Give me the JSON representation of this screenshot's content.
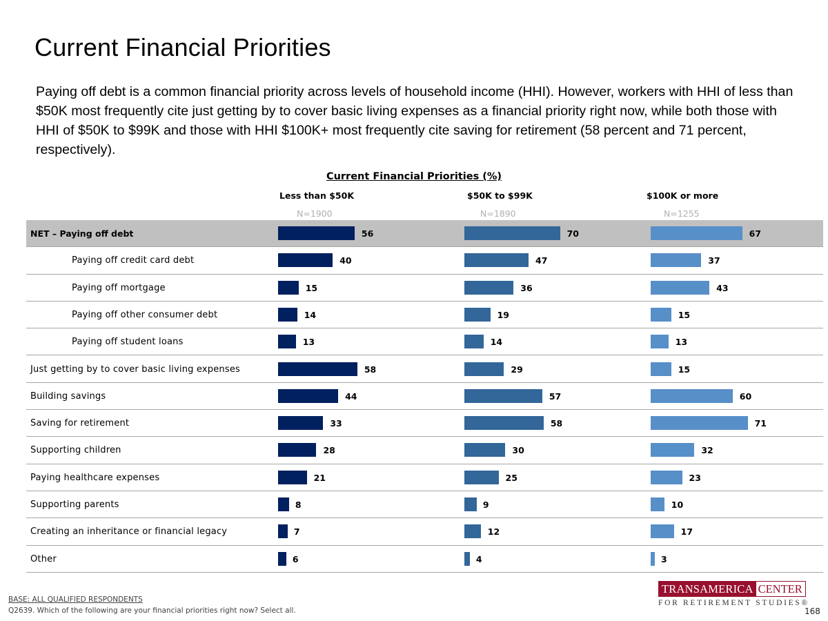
{
  "page": {
    "title": "Current Financial Priorities",
    "summary": "Paying off debt is a common financial priority across levels of household income (HHI). However, workers with HHI of less than $50K most frequently cite just getting by to cover basic living expenses as a financial priority right now, while both those with HHI of $50K to $99K and those with HHI $100K+ most frequently cite saving for retirement (58 percent and 71 percent, respectively).",
    "base_note": "BASE:  ALL QUALIFIED RESPONDENTS",
    "question_note": "Q2639. Which of the following are your financial priorities right now? Select all.",
    "logo": {
      "top_left": "TRANSAMERICA",
      "top_right": "CENTER",
      "bottom": "FOR RETIREMENT STUDIES®"
    },
    "page_number": "168"
  },
  "chart_data": {
    "type": "bar",
    "orientation": "horizontal",
    "title": "Current Financial Priorities (%)",
    "xlabel": "",
    "ylabel": "",
    "xlim": [
      0,
      100
    ],
    "grid": false,
    "legend": "none",
    "categories": [
      "NET – Paying off debt",
      "Paying off credit card debt",
      "Paying off mortgage",
      "Paying off other consumer debt",
      "Paying off student loans",
      "Just getting by to cover basic living expenses",
      "Building savings",
      "Saving for retirement",
      "Supporting children",
      "Paying healthcare expenses",
      "Supporting parents",
      "Creating an inheritance or financial legacy",
      "Other"
    ],
    "category_style": [
      "net",
      "sub",
      "sub",
      "sub",
      "sub",
      "normal",
      "normal",
      "normal",
      "normal",
      "normal",
      "normal",
      "normal",
      "normal"
    ],
    "series": [
      {
        "name": "Less than $50K",
        "n": "N=1900",
        "color": "#002060",
        "values": [
          56,
          40,
          15,
          14,
          13,
          58,
          44,
          33,
          28,
          21,
          8,
          7,
          6
        ]
      },
      {
        "name": "$50K to $99K",
        "n": "N=1890",
        "color": "#336699",
        "values": [
          70,
          47,
          36,
          19,
          14,
          29,
          57,
          58,
          30,
          25,
          9,
          12,
          4
        ]
      },
      {
        "name": "$100K or more",
        "n": "N=1255",
        "color": "#578fc8",
        "values": [
          67,
          37,
          43,
          15,
          13,
          15,
          60,
          71,
          32,
          23,
          10,
          17,
          3
        ]
      }
    ]
  }
}
